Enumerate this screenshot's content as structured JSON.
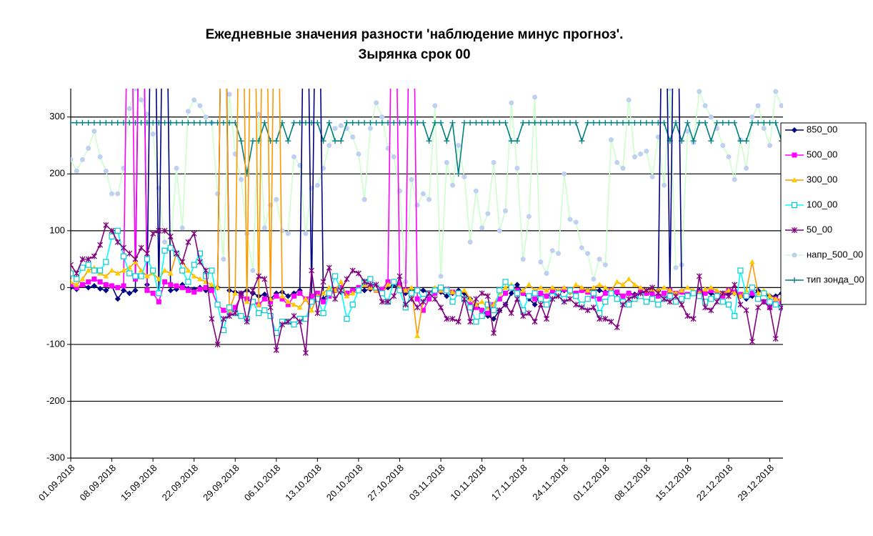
{
  "chart_data": {
    "type": "line",
    "title": "Ежедневные значения  разности 'наблюдение минус прогноз'.",
    "subtitle": "Зырянка     срок 00",
    "legend": "right",
    "grid": true,
    "ylim": [
      -300,
      350
    ],
    "yticks": [
      -300,
      -200,
      -100,
      0,
      100,
      200,
      300
    ],
    "categories": [
      "01.09.2018",
      null,
      null,
      null,
      null,
      null,
      null,
      "08.09.2018",
      null,
      null,
      null,
      null,
      null,
      null,
      "15.09.2018",
      null,
      null,
      null,
      null,
      null,
      null,
      "22.09.2018",
      null,
      null,
      null,
      null,
      null,
      null,
      "29.09.2018",
      null,
      null,
      null,
      null,
      null,
      null,
      "06.10.2018",
      null,
      null,
      null,
      null,
      null,
      null,
      "13.10.2018",
      null,
      null,
      null,
      null,
      null,
      null,
      "20.10.2018",
      null,
      null,
      null,
      null,
      null,
      null,
      "27.10.2018",
      null,
      null,
      null,
      null,
      null,
      null,
      "03.11.2018",
      null,
      null,
      null,
      null,
      null,
      null,
      "10.11.2018",
      null,
      null,
      null,
      null,
      null,
      null,
      "17.11.2018",
      null,
      null,
      null,
      null,
      null,
      null,
      "24.11.2018",
      null,
      null,
      null,
      null,
      null,
      null,
      "01.12.2018",
      null,
      null,
      null,
      null,
      null,
      null,
      "08.12.2018",
      null,
      null,
      null,
      null,
      null,
      null,
      "15.12.2018",
      null,
      null,
      null,
      null,
      null,
      null,
      "22.12.2018",
      null,
      null,
      null,
      null,
      null,
      null,
      "29.12.2018",
      null,
      null
    ],
    "series": [
      {
        "name": "напр_500_00",
        "color": "#ccffcc",
        "marker_color": "#c0d0f0",
        "marker": "circle",
        "values": [
          225,
          205,
          225,
          245,
          275,
          230,
          205,
          165,
          165,
          210,
          315,
          350,
          330,
          305,
          270,
          175,
          80,
          70,
          210,
          105,
          310,
          330,
          320,
          300,
          290,
          165,
          50,
          340,
          235,
          190,
          95,
          30,
          305,
          105,
          145,
          155,
          100,
          95,
          230,
          215,
          95,
          175,
          180,
          210,
          250,
          280,
          285,
          280,
          265,
          235,
          155,
          280,
          325,
          300,
          245,
          230,
          170,
          10,
          190,
          145,
          165,
          155,
          320,
          20,
          220,
          180,
          250,
          195,
          80,
          170,
          105,
          130,
          220,
          100,
          135,
          325,
          210,
          50,
          125,
          335,
          45,
          25,
          65,
          60,
          200,
          120,
          115,
          70,
          60,
          15,
          50,
          40,
          260,
          220,
          210,
          330,
          230,
          235,
          240,
          195,
          265,
          180,
          350,
          35,
          40,
          275,
          255,
          345,
          320,
          300,
          280,
          250,
          230,
          190,
          260,
          210,
          300,
          320,
          280,
          250,
          345,
          320
        ]
      },
      {
        "name": "тип зонда_00",
        "color": "#008080",
        "marker_color": "#008080",
        "marker": "plus",
        "values": [
          290,
          290,
          290,
          290,
          290,
          290,
          290,
          290,
          290,
          290,
          290,
          290,
          290,
          290,
          290,
          290,
          290,
          290,
          290,
          290,
          290,
          290,
          290,
          290,
          290,
          290,
          290,
          290,
          290,
          258,
          200,
          258,
          258,
          290,
          258,
          258,
          290,
          258,
          290,
          290,
          290,
          290,
          290,
          258,
          290,
          258,
          258,
          290,
          290,
          290,
          290,
          290,
          290,
          290,
          290,
          290,
          290,
          290,
          290,
          290,
          290,
          258,
          290,
          290,
          258,
          290,
          200,
          290,
          290,
          290,
          290,
          290,
          290,
          290,
          290,
          258,
          258,
          290,
          290,
          290,
          290,
          290,
          290,
          290,
          290,
          290,
          290,
          258,
          290,
          290,
          290,
          290,
          290,
          290,
          290,
          290,
          290,
          290,
          290,
          290,
          290,
          290,
          258,
          290,
          258,
          290,
          258,
          290,
          290,
          258,
          290,
          290,
          290,
          290,
          258,
          258,
          290,
          290,
          290,
          290,
          290,
          258
        ]
      },
      {
        "name": "850_00",
        "color": "#000080",
        "marker_color": "#000080",
        "marker": "diamond",
        "values": [
          0,
          -3,
          5,
          0,
          3,
          -2,
          -5,
          3,
          -20,
          -5,
          -10,
          -5,
          800,
          5,
          800,
          -8,
          800,
          -5,
          -3,
          5,
          -2,
          -3,
          0,
          -5,
          -3,
          0,
          800,
          -5,
          -8,
          -10,
          -5,
          -10,
          -15,
          -12,
          -20,
          -10,
          -8,
          -15,
          -10,
          -5,
          800,
          -15,
          800,
          -20,
          -10,
          -5,
          -8,
          -10,
          -5,
          -3,
          -5,
          -3,
          0,
          -5,
          0,
          5,
          -5,
          -10,
          -5,
          -3,
          -5,
          -10,
          -5,
          -8,
          -15,
          -10,
          -5,
          -10,
          -20,
          -30,
          -40,
          -50,
          -55,
          -40,
          -30,
          -10,
          5,
          -10,
          -20,
          -30,
          -10,
          -15,
          -12,
          -10,
          -5,
          -8,
          -10,
          -5,
          -5,
          -3,
          -5,
          -8,
          -5,
          -10,
          -15,
          -10,
          -12,
          -8,
          -10,
          -5,
          -5,
          800,
          -10,
          800,
          -8,
          -15,
          -10,
          -5,
          -8,
          -10,
          -15,
          -10,
          -12,
          -10,
          -15,
          -20,
          -15,
          -5,
          -10,
          -15,
          -15,
          -10
        ]
      },
      {
        "name": "500_00",
        "color": "#ff00ff",
        "marker_color": "#ff00ff",
        "marker": "square",
        "values": [
          5,
          0,
          5,
          10,
          15,
          10,
          5,
          3,
          0,
          3,
          800,
          15,
          800,
          -5,
          -10,
          -25,
          10,
          5,
          3,
          0,
          -5,
          -8,
          -3,
          0,
          -5,
          -30,
          -40,
          -45,
          -35,
          -15,
          -20,
          -25,
          -30,
          -20,
          -25,
          -15,
          -20,
          -30,
          -15,
          -10,
          -20,
          -15,
          -10,
          -25,
          -15,
          -5,
          0,
          -10,
          -5,
          0,
          5,
          0,
          -5,
          -3,
          10,
          800,
          5,
          -5,
          800,
          -20,
          -40,
          -20,
          -10,
          -5,
          -3,
          -8,
          -10,
          -20,
          -30,
          -35,
          -40,
          -45,
          -30,
          -20,
          -10,
          0,
          -5,
          -10,
          -15,
          -20,
          -10,
          -15,
          -5,
          -8,
          -3,
          -5,
          -10,
          -5,
          -8,
          -15,
          -20,
          -10,
          -5,
          -8,
          -15,
          -10,
          -15,
          -5,
          -10,
          -12,
          -15,
          -10,
          -5,
          -10,
          -8,
          -12,
          -10,
          -8,
          -10,
          -5,
          -10,
          -15,
          -5,
          -8,
          -12,
          -15,
          -10,
          -20,
          -25,
          -35,
          -20,
          -25
        ]
      },
      {
        "name": "300_00",
        "color": "#ff9900",
        "marker_color": "#ffcc00",
        "marker": "triangle",
        "values": [
          10,
          5,
          15,
          30,
          35,
          25,
          20,
          30,
          25,
          30,
          35,
          45,
          30,
          20,
          25,
          15,
          30,
          25,
          60,
          45,
          30,
          20,
          15,
          10,
          5,
          0,
          800,
          -40,
          -10,
          800,
          -25,
          800,
          -30,
          800,
          -20,
          800,
          -15,
          -25,
          -30,
          -35,
          -20,
          -40,
          -15,
          -10,
          0,
          -5,
          10,
          -15,
          -10,
          -5,
          5,
          0,
          -5,
          -10,
          5,
          10,
          0,
          -5,
          0,
          -85,
          -20,
          -10,
          0,
          -5,
          -3,
          -8,
          -10,
          -5,
          -20,
          -30,
          -25,
          -35,
          -30,
          -10,
          0,
          5,
          -10,
          -5,
          5,
          -5,
          0,
          -5,
          0,
          -5,
          0,
          -8,
          5,
          0,
          -5,
          0,
          5,
          0,
          -5,
          10,
          5,
          15,
          5,
          0,
          -5,
          -3,
          -5,
          0,
          -5,
          -10,
          -5,
          0,
          -5,
          -10,
          -3,
          0,
          -5,
          -10,
          -5,
          -10,
          -15,
          -5,
          45,
          -10,
          -5,
          -15,
          -20,
          -20
        ]
      },
      {
        "name": "100_00",
        "color": "#00ffff",
        "marker_color": "#00cccc",
        "marker": "open-square",
        "values": [
          25,
          15,
          35,
          40,
          30,
          30,
          45,
          90,
          100,
          55,
          25,
          20,
          20,
          50,
          30,
          -10,
          65,
          70,
          60,
          30,
          10,
          40,
          60,
          20,
          30,
          -30,
          -75,
          -35,
          -45,
          -50,
          -55,
          -25,
          -45,
          -40,
          -50,
          -80,
          -60,
          -60,
          -65,
          -55,
          -55,
          -25,
          -20,
          -45,
          -10,
          20,
          -5,
          -55,
          -30,
          -5,
          10,
          15,
          0,
          -10,
          -25,
          10,
          -5,
          -35,
          -10,
          -5,
          -20,
          -10,
          -5,
          0,
          -5,
          -25,
          -10,
          -20,
          -35,
          -60,
          -50,
          -30,
          -40,
          -5,
          10,
          0,
          -10,
          -40,
          -15,
          -10,
          -20,
          -30,
          -15,
          -10,
          -20,
          -5,
          -15,
          -30,
          -20,
          -10,
          -45,
          -25,
          -10,
          -20,
          -25,
          -30,
          -20,
          -15,
          -25,
          -20,
          -30,
          -20,
          -15,
          -25,
          -20,
          -15,
          -10,
          -15,
          -25,
          -20,
          -15,
          -25,
          -30,
          -50,
          30,
          -15,
          0,
          -20,
          -10,
          -25,
          -30,
          -35
        ]
      },
      {
        "name": "50_00",
        "color": "#800080",
        "marker_color": "#800080",
        "marker": "asterisk",
        "values": [
          40,
          25,
          50,
          50,
          55,
          75,
          110,
          100,
          80,
          70,
          60,
          50,
          70,
          60,
          95,
          100,
          100,
          90,
          60,
          45,
          80,
          95,
          45,
          30,
          -55,
          -100,
          -55,
          -50,
          -45,
          -10,
          -60,
          -5,
          20,
          15,
          -35,
          -110,
          -65,
          -60,
          -50,
          -60,
          -115,
          30,
          -45,
          10,
          35,
          -20,
          -5,
          15,
          30,
          25,
          10,
          5,
          5,
          -25,
          -25,
          -15,
          20,
          -30,
          -20,
          -35,
          -25,
          -10,
          -20,
          -35,
          -55,
          -55,
          -60,
          -20,
          -60,
          -20,
          -10,
          -15,
          -80,
          -40,
          -30,
          -45,
          -20,
          -50,
          -45,
          -60,
          -30,
          -55,
          -20,
          -15,
          -25,
          -20,
          -30,
          -35,
          -40,
          -35,
          -55,
          -55,
          -60,
          -70,
          -30,
          -20,
          -15,
          -10,
          -5,
          0,
          -10,
          -20,
          -25,
          -15,
          -30,
          -50,
          -55,
          20,
          -35,
          -40,
          -25,
          -10,
          -15,
          5,
          -30,
          -40,
          -95,
          -35,
          -25,
          -35,
          -90,
          -35
        ]
      }
    ]
  }
}
